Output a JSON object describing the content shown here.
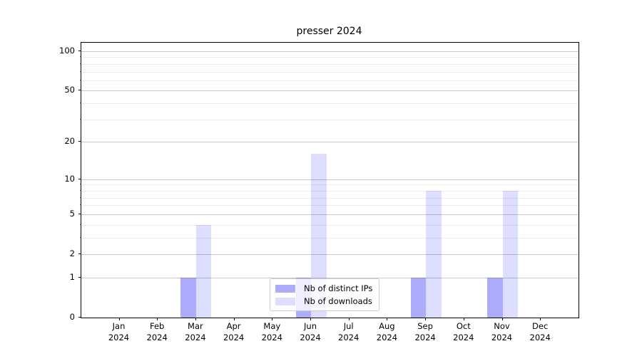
{
  "title": "presser 2024",
  "chart_data": {
    "type": "bar",
    "title": "presser 2024",
    "categories": [
      "Jan",
      "Feb",
      "Mar",
      "Apr",
      "May",
      "Jun",
      "Jul",
      "Aug",
      "Sep",
      "Oct",
      "Nov",
      "Dec"
    ],
    "x_year_label": "2024",
    "series": [
      {
        "name": "Nb of distinct IPs",
        "color": "rgba(25,25,240,0.36)",
        "color_hex_on_white": "#a8a8f5",
        "values": [
          0,
          0,
          1,
          0,
          0,
          1,
          0,
          0,
          1,
          0,
          1,
          0
        ]
      },
      {
        "name": "Nb of downloads",
        "color": "rgba(25,25,240,0.15)",
        "color_hex_on_white": "#dbdbf8",
        "values": [
          0,
          0,
          4,
          0,
          0,
          16,
          0,
          0,
          8,
          0,
          8,
          0
        ]
      }
    ],
    "y_scale": "log1p",
    "y_ticks": [
      0,
      1,
      2,
      5,
      10,
      20,
      50,
      100
    ],
    "y_minor_ticks": [
      3,
      4,
      6,
      7,
      8,
      9,
      30,
      40,
      60,
      70,
      80,
      90
    ],
    "ylim": [
      0,
      116
    ],
    "xlabel": "",
    "ylabel": "",
    "grid": true,
    "legend_position": "lower center"
  },
  "colors": {
    "grid_major": "#c9c9c9",
    "grid_minor": "#ededed",
    "axis": "#000000",
    "legend_border": "#cccccc"
  }
}
